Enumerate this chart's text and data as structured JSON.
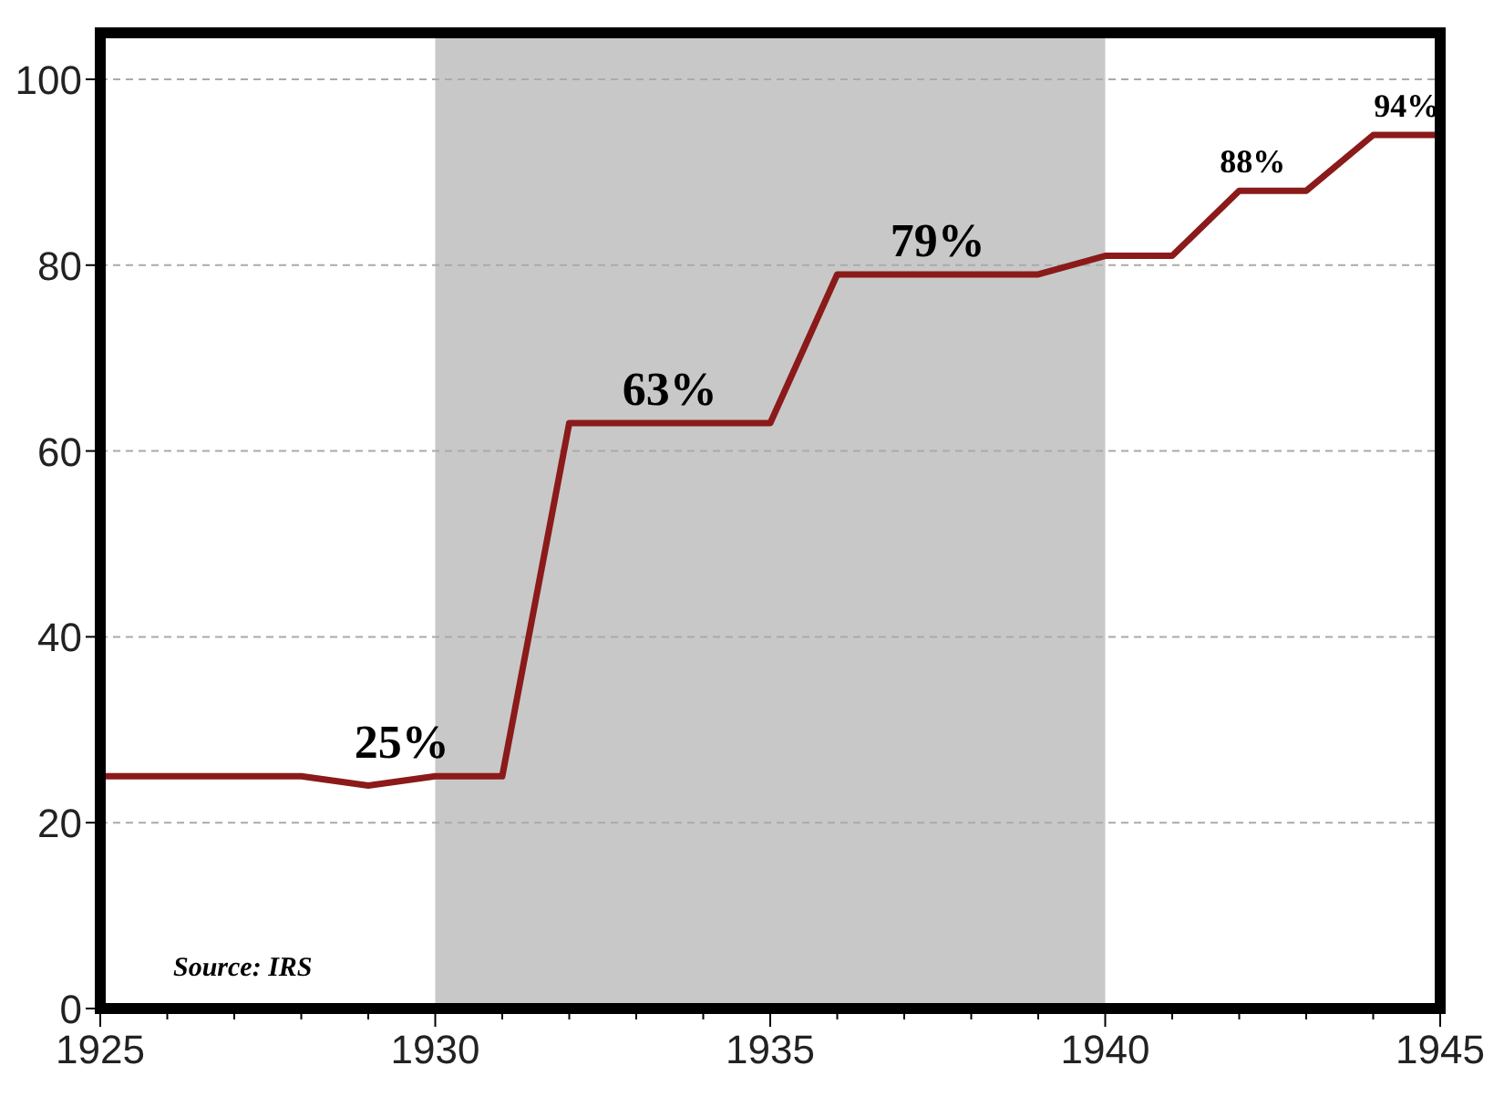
{
  "chart_data": {
    "type": "line",
    "x": [
      1925,
      1926,
      1927,
      1928,
      1929,
      1930,
      1931,
      1932,
      1933,
      1934,
      1935,
      1936,
      1937,
      1938,
      1939,
      1940,
      1941,
      1942,
      1943,
      1944,
      1945
    ],
    "series": [
      {
        "color": "#8b1a1a",
        "values": [
          25,
          25,
          25,
          25,
          24,
          25,
          25,
          63,
          63,
          63,
          63,
          79,
          79,
          79,
          79,
          81,
          81,
          88,
          88,
          94,
          94
        ]
      }
    ],
    "xlim": [
      1925,
      1945
    ],
    "xticks": [
      1925,
      {
        "value": 1926,
        "label": null
      },
      {
        "value": 1927,
        "label": null
      },
      {
        "value": 1928,
        "label": null
      },
      {
        "value": 1929,
        "label": null
      },
      1930,
      {
        "value": 1931,
        "label": null
      },
      {
        "value": 1932,
        "label": null
      },
      {
        "value": 1933,
        "label": null
      },
      {
        "value": 1934,
        "label": null
      },
      1935,
      {
        "value": 1936,
        "label": null
      },
      {
        "value": 1937,
        "label": null
      },
      {
        "value": 1938,
        "label": null
      },
      {
        "value": 1939,
        "label": null
      },
      1940,
      {
        "value": 1941,
        "label": null
      },
      {
        "value": 1942,
        "label": null
      },
      {
        "value": 1943,
        "label": null
      },
      {
        "value": 1944,
        "label": null
      },
      1945
    ],
    "ylim": [
      0,
      105
    ],
    "yticks": [
      0,
      20,
      40,
      60,
      80,
      100
    ],
    "grid": "y",
    "marker": "none",
    "line_style": "solid",
    "bands": [
      {
        "axis": "x",
        "from": 1930,
        "to": 1940,
        "label": null,
        "color": "#c8c8c8"
      }
    ],
    "annotations": [
      {
        "text": "25%",
        "x": 1929.5,
        "y": 25
      },
      {
        "text": "63%",
        "x": 1933.5,
        "y": 63
      },
      {
        "text": "79%",
        "x": 1937.5,
        "y": 79
      },
      {
        "text": "88%",
        "x": 1942.2,
        "y": 88
      },
      {
        "text": "94%",
        "x": 1944.5,
        "y": 94
      },
      "Source: IRS"
    ]
  }
}
